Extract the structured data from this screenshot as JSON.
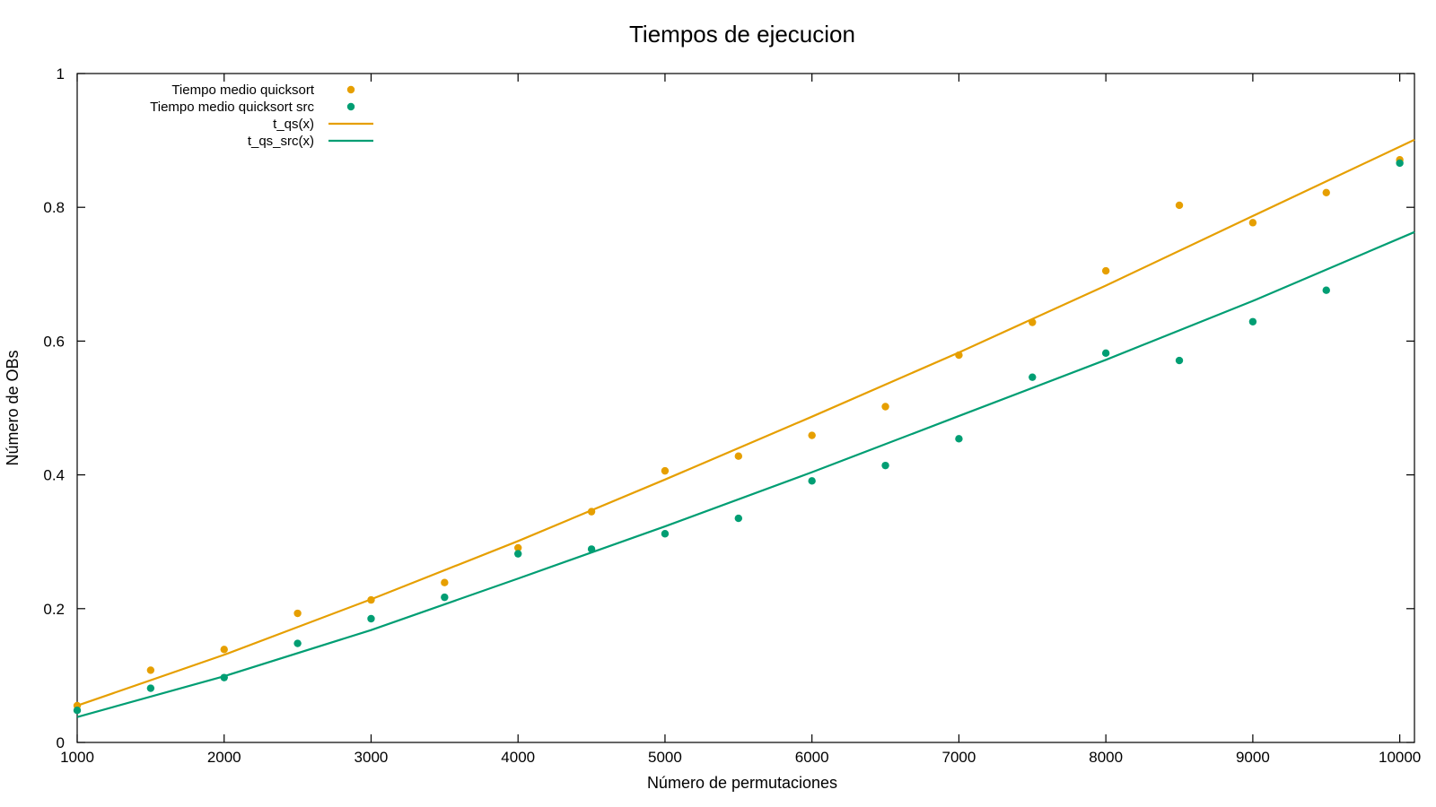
{
  "chart_data": {
    "type": "scatter",
    "title": "Tiempos de ejecucion",
    "xlabel": "Número de permutaciones",
    "ylabel": "Número de OBs",
    "xlim": [
      1000,
      10100
    ],
    "ylim": [
      0,
      1
    ],
    "xticks": [
      1000,
      2000,
      3000,
      4000,
      5000,
      6000,
      7000,
      8000,
      9000,
      10000
    ],
    "yticks": [
      0,
      0.2,
      0.4,
      0.6,
      0.8,
      1
    ],
    "ytick_labels": [
      "0",
      "0.2",
      "0.4",
      "0.6",
      "0.8",
      "1"
    ],
    "grid": false,
    "legend_position": "top-left",
    "series": [
      {
        "name": "Tiempo medio quicksort",
        "kind": "points",
        "color": "#e69f00",
        "x": [
          1000,
          1500,
          2000,
          2500,
          3000,
          3500,
          4000,
          4500,
          5000,
          5500,
          6000,
          6500,
          7000,
          7500,
          8000,
          8500,
          9000,
          9500,
          10000
        ],
        "y": [
          0.055,
          0.108,
          0.139,
          0.193,
          0.213,
          0.239,
          0.291,
          0.345,
          0.406,
          0.428,
          0.459,
          0.502,
          0.579,
          0.628,
          0.705,
          0.803,
          0.777,
          0.822,
          0.871
        ]
      },
      {
        "name": "Tiempo medio quicksort src",
        "kind": "points",
        "color": "#009e73",
        "x": [
          1000,
          1500,
          2000,
          2500,
          3000,
          3500,
          4000,
          4500,
          5000,
          5500,
          6000,
          6500,
          7000,
          7500,
          8000,
          8500,
          9000,
          9500,
          10000
        ],
        "y": [
          0.048,
          0.081,
          0.097,
          0.148,
          0.185,
          0.217,
          0.282,
          0.289,
          0.312,
          0.335,
          0.391,
          0.414,
          0.454,
          0.546,
          0.582,
          0.571,
          0.629,
          0.676,
          0.866
        ]
      },
      {
        "name": "t_qs(x)",
        "kind": "line",
        "color": "#e69f00",
        "x": [
          1000,
          2000,
          3000,
          4000,
          5000,
          6000,
          7000,
          8000,
          9000,
          10100
        ],
        "y": [
          0.055,
          0.131,
          0.214,
          0.301,
          0.393,
          0.487,
          0.583,
          0.683,
          0.787,
          0.901
        ]
      },
      {
        "name": "t_qs_src(x)",
        "kind": "line",
        "color": "#009e73",
        "x": [
          1000,
          2000,
          3000,
          4000,
          5000,
          6000,
          7000,
          8000,
          9000,
          10100
        ],
        "y": [
          0.038,
          0.099,
          0.168,
          0.245,
          0.323,
          0.404,
          0.488,
          0.572,
          0.66,
          0.763
        ]
      }
    ]
  }
}
